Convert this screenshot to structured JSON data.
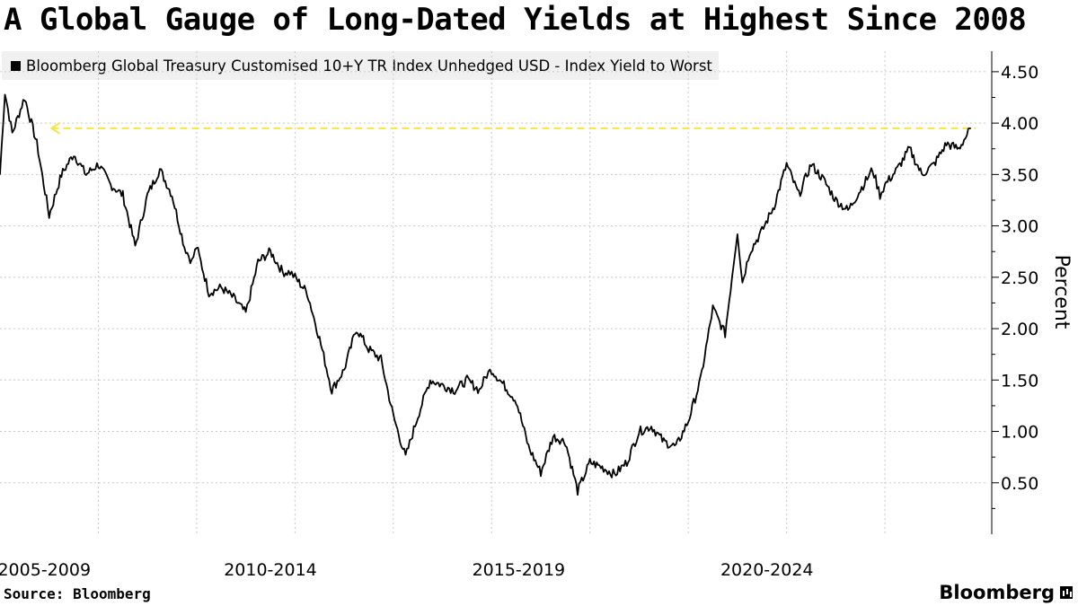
{
  "chart_data": {
    "type": "line",
    "title": "A Global Gauge of Long-Dated Yields at Highest Since 2008",
    "series": [
      {
        "name": "Bloomberg Global Treasury Customised 10+Y TR Index Unhedged USD - Index Yield to Worst",
        "color": "#000000",
        "x": [
          2005.0,
          2005.1,
          2005.25,
          2005.5,
          2005.75,
          2006.0,
          2006.25,
          2006.5,
          2006.75,
          2007.0,
          2007.25,
          2007.5,
          2007.75,
          2008.0,
          2008.25,
          2008.5,
          2008.75,
          2008.9,
          2009.0,
          2009.25,
          2009.5,
          2009.75,
          2010.0,
          2010.25,
          2010.5,
          2010.75,
          2010.9,
          2011.0,
          2011.25,
          2011.5,
          2011.75,
          2012.0,
          2012.25,
          2012.5,
          2012.75,
          2013.0,
          2013.25,
          2013.5,
          2013.75,
          2014.0,
          2014.25,
          2014.5,
          2014.75,
          2014.9,
          2015.0,
          2015.25,
          2015.5,
          2015.75,
          2016.0,
          2016.25,
          2016.5,
          2016.75,
          2017.0,
          2017.25,
          2017.5,
          2017.75,
          2018.0,
          2018.25,
          2018.5,
          2018.75,
          2019.0,
          2019.25,
          2019.5,
          2019.75,
          2020.0,
          2020.1,
          2020.25,
          2020.5,
          2020.75,
          2021.0,
          2021.25,
          2021.5,
          2021.75,
          2022.0,
          2022.25,
          2022.5,
          2022.75,
          2022.9,
          2023.0,
          2023.25,
          2023.5,
          2023.75,
          2024.0,
          2024.25,
          2024.5,
          2024.75
        ],
        "y": [
          3.5,
          4.3,
          3.9,
          4.25,
          3.8,
          3.1,
          3.5,
          3.7,
          3.5,
          3.6,
          3.4,
          3.3,
          2.8,
          3.3,
          3.55,
          3.3,
          2.8,
          2.65,
          2.8,
          2.35,
          2.4,
          2.3,
          2.15,
          2.65,
          2.75,
          2.55,
          2.55,
          2.5,
          2.35,
          1.9,
          1.4,
          1.6,
          2.0,
          1.8,
          1.7,
          1.15,
          0.75,
          1.15,
          1.5,
          1.45,
          1.4,
          1.5,
          1.4,
          1.55,
          1.6,
          1.45,
          1.3,
          0.85,
          0.6,
          0.95,
          0.9,
          0.42,
          0.7,
          0.65,
          0.58,
          0.7,
          1.0,
          1.05,
          0.9,
          0.85,
          1.1,
          1.5,
          2.2,
          1.95,
          2.95,
          2.45,
          2.75,
          2.95,
          3.2,
          3.6,
          3.3,
          3.6,
          3.45,
          3.25,
          3.15,
          3.35,
          3.55,
          3.3,
          3.4,
          3.55,
          3.75,
          3.5,
          3.6,
          3.8,
          3.75,
          3.95
        ]
      }
    ],
    "xlim": [
      2005.0,
      2025.1
    ],
    "ylim": [
      0.0,
      4.7
    ],
    "yticks": [
      0.5,
      1.0,
      1.5,
      2.0,
      2.5,
      3.0,
      3.5,
      4.0,
      4.5
    ],
    "ytick_labels": [
      "0.50",
      "1.00",
      "1.50",
      "2.00",
      "2.50",
      "3.00",
      "3.50",
      "4.00",
      "4.50"
    ],
    "x_gridlines": [
      2007,
      2009,
      2011,
      2013,
      2015,
      2017,
      2019,
      2021,
      2023
    ],
    "x_group_labels": [
      {
        "label": "2005-2009",
        "x": 2005.9
      },
      {
        "label": "2010-2014",
        "x": 2010.5
      },
      {
        "label": "2015-2019",
        "x": 2015.55
      },
      {
        "label": "2020-2024",
        "x": 2020.6
      }
    ],
    "reference_line": {
      "y": 3.95,
      "x_start": 2006.05,
      "x_end": 2024.85,
      "color": "#f4e542",
      "style": "dashed-arrow"
    },
    "ylabel": "Percent",
    "yaxis_side": "right",
    "grid": "dotted",
    "legend_position": "top-left"
  },
  "source": "Source: Bloomberg",
  "logo_text": "Bloomberg",
  "colors": {
    "line": "#000000",
    "reference": "#f4e542",
    "legend_bg": "#f0f0f0",
    "grid": "#c8c8c8"
  }
}
